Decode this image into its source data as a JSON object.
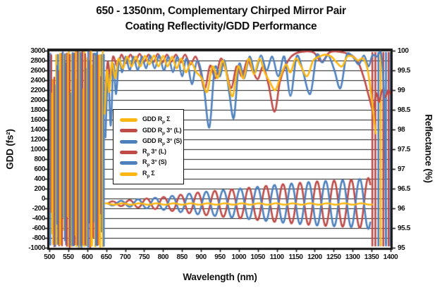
{
  "title": {
    "line1": "650 - 1350nm, Complementary Chirped Mirror Pair",
    "line2": "Coating Reflectivity/GDD Performance"
  },
  "chart_data": {
    "type": "line",
    "title": "650 - 1350nm, Complementary Chirped Mirror Pair Coating Reflectivity/GDD Performance",
    "xlabel": "Wavelength (nm)",
    "ylabel_left": "GDD (fs²)",
    "ylabel_right": "Reflectance (%)",
    "grid": "horizontal",
    "x_range": [
      500,
      1400
    ],
    "x_ticks": [
      500,
      550,
      600,
      650,
      700,
      750,
      800,
      850,
      900,
      950,
      1000,
      1050,
      1100,
      1150,
      1200,
      1250,
      1300,
      1350,
      1400
    ],
    "y_left_range": [
      -1000,
      3000
    ],
    "y_left_ticks": [
      3000,
      2800,
      2600,
      2400,
      2200,
      2000,
      1800,
      1600,
      1400,
      1200,
      1000,
      800,
      600,
      400,
      200,
      0,
      -200,
      -400,
      -600,
      -800,
      -1000
    ],
    "y_right_range": [
      95,
      100
    ],
    "y_right_ticks": [
      "100",
      "99.5",
      "99",
      "98.5",
      "98",
      "97.5",
      "97",
      "96.5",
      "96",
      "95.5",
      "95"
    ],
    "colors": {
      "yellow": "#FDB713",
      "red": "#BE4B48",
      "blue": "#4E80BD",
      "frame": "#161616",
      "grid": "#1c1c1c"
    },
    "legend": {
      "position": "inside-left",
      "entries": [
        {
          "pre": "GDD R",
          "sub": "p",
          "post": " Σ",
          "color": "#FDB713"
        },
        {
          "pre": "GDD R",
          "sub": "p",
          "post": " 3° (L)",
          "color": "#BE4B48"
        },
        {
          "pre": "GDD R",
          "sub": "p",
          "post": " 3° (S)",
          "color": "#4E80BD"
        },
        {
          "pre": "R",
          "sub": "p",
          "post": " 3° (L)",
          "color": "#BE4B48"
        },
        {
          "pre": "R",
          "sub": "p",
          "post": " 3° (S)",
          "color": "#4E80BD"
        },
        {
          "pre": "R",
          "sub": "p",
          "post": " Σ",
          "color": "#FDB713"
        }
      ]
    },
    "series": [
      {
        "id": "gdd-rp-3-L",
        "label": "GDD Rp 3° (L)",
        "axis": "gdd",
        "color": "red",
        "synth": {
          "type": "sine",
          "center": -100,
          "period": 45,
          "phase": 0,
          "domain": [
            655,
            1347
          ],
          "amp_envelope": [
            [
              655,
              35
            ],
            [
              700,
              60
            ],
            [
              800,
              130
            ],
            [
              900,
              230
            ],
            [
              1000,
              300
            ],
            [
              1100,
              380
            ],
            [
              1200,
              445
            ],
            [
              1300,
              480
            ],
            [
              1347,
              520
            ]
          ]
        }
      },
      {
        "id": "gdd-rp-3-S",
        "label": "GDD Rp 3° (S)",
        "axis": "gdd",
        "color": "blue",
        "synth": {
          "type": "sine",
          "center": -100,
          "period": 45,
          "phase": 0.5,
          "domain": [
            655,
            1347
          ],
          "amp_envelope": [
            [
              655,
              35
            ],
            [
              700,
              60
            ],
            [
              800,
              130
            ],
            [
              900,
              230
            ],
            [
              1000,
              300
            ],
            [
              1100,
              380
            ],
            [
              1200,
              445
            ],
            [
              1300,
              480
            ],
            [
              1347,
              520
            ]
          ]
        }
      },
      {
        "id": "gdd-rp-sum",
        "label": "GDD Rp Σ",
        "axis": "gdd",
        "color": "yellow",
        "synth": {
          "type": "sine",
          "center": -112,
          "period": 45,
          "phase": 0.25,
          "domain": [
            648,
            1352
          ],
          "amp_envelope": [
            [
              648,
              14
            ],
            [
              1352,
              14
            ]
          ]
        }
      },
      {
        "id": "r-rp-3-L",
        "label": "Rp 3° (L)",
        "axis": "refl",
        "color": "red",
        "points": [
          [
            648,
            99.0
          ],
          [
            654,
            99.72
          ],
          [
            661,
            99.3
          ],
          [
            668,
            99.85
          ],
          [
            680,
            99.58
          ],
          [
            690,
            99.9
          ],
          [
            702,
            99.68
          ],
          [
            714,
            99.9
          ],
          [
            726,
            99.7
          ],
          [
            738,
            99.92
          ],
          [
            750,
            99.72
          ],
          [
            762,
            99.9
          ],
          [
            774,
            99.7
          ],
          [
            786,
            99.92
          ],
          [
            798,
            99.7
          ],
          [
            810,
            99.9
          ],
          [
            822,
            99.72
          ],
          [
            834,
            99.9
          ],
          [
            846,
            99.7
          ],
          [
            858,
            99.9
          ],
          [
            872,
            99.65
          ],
          [
            886,
            99.85
          ],
          [
            898,
            99.5
          ],
          [
            910,
            99.02
          ],
          [
            924,
            99.62
          ],
          [
            938,
            99.3
          ],
          [
            952,
            99.8
          ],
          [
            966,
            99.5
          ],
          [
            980,
            99.05
          ],
          [
            994,
            99.6
          ],
          [
            1008,
            99.35
          ],
          [
            1022,
            99.75
          ],
          [
            1036,
            99.5
          ],
          [
            1050,
            99.28
          ],
          [
            1064,
            99.6
          ],
          [
            1078,
            99.15
          ],
          [
            1094,
            98.45
          ],
          [
            1108,
            99.2
          ],
          [
            1122,
            99.6
          ],
          [
            1138,
            99.85
          ],
          [
            1155,
            99.95
          ],
          [
            1175,
            99.98
          ],
          [
            1198,
            99.95
          ],
          [
            1218,
            99.72
          ],
          [
            1238,
            99.95
          ],
          [
            1258,
            99.98
          ],
          [
            1278,
            99.95
          ],
          [
            1298,
            99.88
          ],
          [
            1315,
            99.7
          ],
          [
            1330,
            99.3
          ],
          [
            1344,
            98.8
          ],
          [
            1354,
            98.5
          ],
          [
            1362,
            98.92
          ],
          [
            1370,
            98.7
          ],
          [
            1378,
            99.0
          ],
          [
            1386,
            98.82
          ],
          [
            1394,
            99.0
          ],
          [
            1400,
            98.9
          ]
        ]
      },
      {
        "id": "r-rp-3-S",
        "label": "Rp 3° (S)",
        "axis": "refl",
        "color": "blue",
        "points": [
          [
            648,
            97.8
          ],
          [
            655,
            99.4
          ],
          [
            662,
            98.1
          ],
          [
            669,
            99.65
          ],
          [
            676,
            98.9
          ],
          [
            684,
            99.8
          ],
          [
            692,
            99.45
          ],
          [
            701,
            99.85
          ],
          [
            712,
            99.5
          ],
          [
            722,
            99.85
          ],
          [
            733,
            99.5
          ],
          [
            744,
            99.85
          ],
          [
            755,
            99.55
          ],
          [
            766,
            99.88
          ],
          [
            778,
            99.55
          ],
          [
            790,
            99.88
          ],
          [
            802,
            99.5
          ],
          [
            814,
            99.85
          ],
          [
            826,
            99.45
          ],
          [
            838,
            99.85
          ],
          [
            850,
            99.35
          ],
          [
            862,
            99.8
          ],
          [
            876,
            99.15
          ],
          [
            890,
            99.75
          ],
          [
            906,
            99.2
          ],
          [
            922,
            98.05
          ],
          [
            936,
            99.55
          ],
          [
            950,
            99.35
          ],
          [
            962,
            99.75
          ],
          [
            975,
            98.9
          ],
          [
            987,
            98.3
          ],
          [
            1000,
            99.65
          ],
          [
            1014,
            99.3
          ],
          [
            1028,
            99.85
          ],
          [
            1043,
            99.45
          ],
          [
            1058,
            99.88
          ],
          [
            1073,
            99.5
          ],
          [
            1088,
            99.85
          ],
          [
            1104,
            99.35
          ],
          [
            1120,
            99.85
          ],
          [
            1136,
            98.85
          ],
          [
            1152,
            99.85
          ],
          [
            1167,
            99.55
          ],
          [
            1188,
            98.9
          ],
          [
            1205,
            99.88
          ],
          [
            1220,
            99.7
          ],
          [
            1236,
            99.88
          ],
          [
            1252,
            99.5
          ],
          [
            1268,
            99.05
          ],
          [
            1284,
            99.88
          ],
          [
            1300,
            99.85
          ],
          [
            1316,
            99.65
          ],
          [
            1330,
            99.88
          ],
          [
            1342,
            99.6
          ],
          [
            1352,
            99.88
          ],
          [
            1364,
            99.85
          ],
          [
            1376,
            99.88
          ],
          [
            1384,
            98.5
          ],
          [
            1388,
            95.1
          ]
        ]
      },
      {
        "id": "r-rp-sum",
        "label": "Rp Σ",
        "axis": "refl",
        "color": "yellow",
        "points": [
          [
            646,
            98.4
          ],
          [
            652,
            99.5
          ],
          [
            658,
            98.95
          ],
          [
            665,
            99.7
          ],
          [
            674,
            99.3
          ],
          [
            682,
            99.8
          ],
          [
            694,
            99.55
          ],
          [
            705,
            99.85
          ],
          [
            717,
            99.6
          ],
          [
            728,
            99.85
          ],
          [
            740,
            99.6
          ],
          [
            752,
            99.87
          ],
          [
            764,
            99.65
          ],
          [
            776,
            99.88
          ],
          [
            788,
            99.6
          ],
          [
            800,
            99.87
          ],
          [
            812,
            99.6
          ],
          [
            824,
            99.85
          ],
          [
            836,
            99.55
          ],
          [
            848,
            99.8
          ],
          [
            860,
            99.45
          ],
          [
            874,
            99.7
          ],
          [
            888,
            99.45
          ],
          [
            902,
            99.3
          ],
          [
            916,
            98.95
          ],
          [
            930,
            99.6
          ],
          [
            944,
            99.3
          ],
          [
            958,
            99.75
          ],
          [
            972,
            99.2
          ],
          [
            984,
            98.85
          ],
          [
            998,
            99.6
          ],
          [
            1012,
            99.3
          ],
          [
            1026,
            99.8
          ],
          [
            1040,
            99.4
          ],
          [
            1054,
            99.8
          ],
          [
            1068,
            99.45
          ],
          [
            1082,
            99.2
          ],
          [
            1096,
            99.0
          ],
          [
            1110,
            99.35
          ],
          [
            1124,
            99.65
          ],
          [
            1136,
            99.45
          ],
          [
            1150,
            99.8
          ],
          [
            1164,
            99.6
          ],
          [
            1180,
            99.35
          ],
          [
            1196,
            99.75
          ],
          [
            1212,
            99.85
          ],
          [
            1228,
            99.9
          ],
          [
            1244,
            99.85
          ],
          [
            1258,
            99.7
          ],
          [
            1272,
            99.6
          ],
          [
            1286,
            99.85
          ],
          [
            1300,
            99.85
          ],
          [
            1314,
            99.75
          ],
          [
            1328,
            99.8
          ],
          [
            1340,
            99.5
          ],
          [
            1350,
            98.8
          ],
          [
            1356,
            98.3
          ],
          [
            1361,
            97.9
          ]
        ]
      }
    ],
    "chaos_regions": {
      "left": {
        "x0": 502,
        "x1": 646,
        "count": 56,
        "seed": 7,
        "palette": [
          "blue",
          "red",
          "yellow",
          "yellow",
          "red",
          "blue",
          "yellow",
          "blue"
        ]
      },
      "right_strokes": [
        {
          "x": 1352,
          "color": "red"
        },
        {
          "x": 1360,
          "color": "red"
        },
        {
          "x": 1368,
          "color": "blue"
        },
        {
          "x": 1374,
          "color": "yellow"
        },
        {
          "x": 1381,
          "color": "red"
        },
        {
          "x": 1388,
          "color": "blue"
        },
        {
          "x": 1395,
          "color": "red"
        },
        {
          "x": 1400,
          "color": "blue"
        }
      ]
    }
  }
}
